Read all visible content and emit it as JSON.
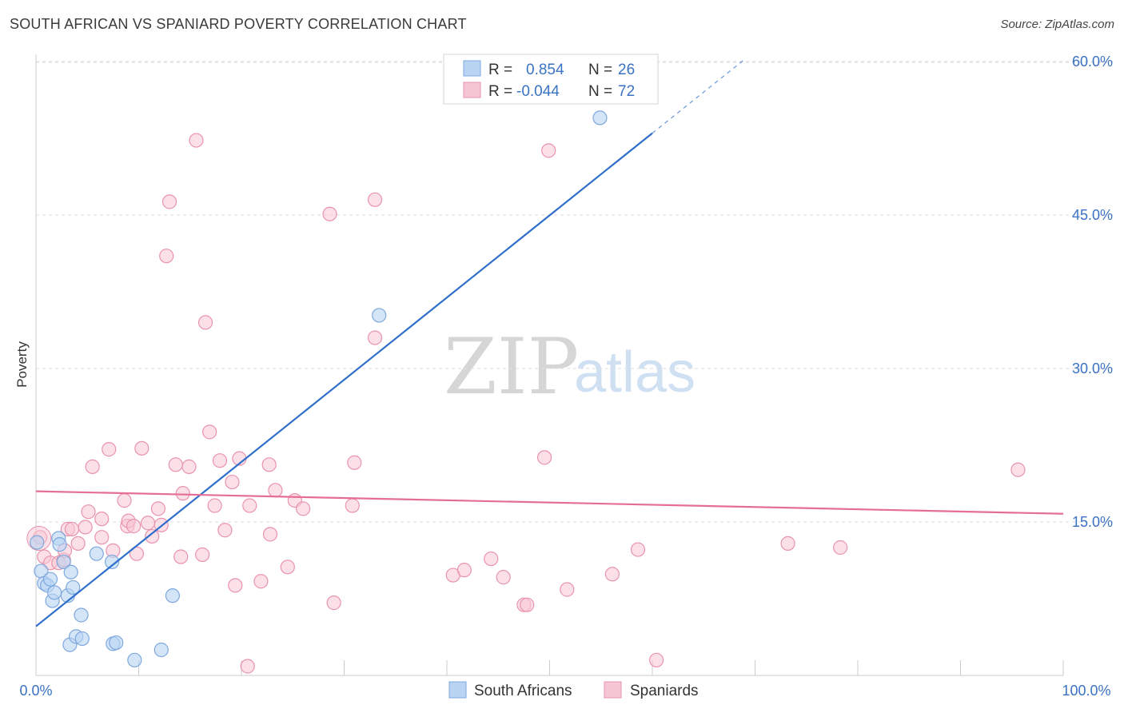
{
  "header": {
    "title": "SOUTH AFRICAN VS SPANIARD POVERTY CORRELATION CHART",
    "source": "Source: ZipAtlas.com"
  },
  "watermark": {
    "zip": "ZIP",
    "atlas": "atlas"
  },
  "colors": {
    "blue_fill": "#b9d3f3",
    "blue_stroke": "#7ea8dd",
    "blue_line": "#2f6fcc",
    "pink_fill": "#f7c6d4",
    "pink_stroke": "#e993ae",
    "pink_line": "#e56e95",
    "grid": "#dddddd",
    "tick_text": "#3a72c4"
  },
  "chart_data": {
    "type": "scatter",
    "title": "SOUTH AFRICAN VS SPANIARD POVERTY CORRELATION CHART",
    "xlabel": "",
    "ylabel": "Poverty",
    "xlim": [
      0,
      100
    ],
    "ylim": [
      0,
      62
    ],
    "x_tick_labels": [
      "0.0%",
      "100.0%"
    ],
    "y_ticks": [
      15,
      30,
      45,
      60
    ],
    "y_tick_labels": [
      "15.0%",
      "30.0%",
      "45.0%",
      "60.0%"
    ],
    "grid": true,
    "legend_position": "bottom-center",
    "stats": [
      {
        "r_label": "R =",
        "r_value": "0.854",
        "n_label": "N =",
        "n_value": "26"
      },
      {
        "r_label": "R =",
        "r_value": "-0.044",
        "n_label": "N =",
        "n_value": "72"
      }
    ],
    "series": [
      {
        "name": "South Africans",
        "color": "#b9d3f3",
        "trend": {
          "x0": 0,
          "y0": 4.8,
          "x1": 60,
          "y1": 53,
          "dashed_to_x": 69
        },
        "points": [
          [
            0.1,
            13
          ],
          [
            0.5,
            10.2
          ],
          [
            0.8,
            9
          ],
          [
            1.1,
            8.8
          ],
          [
            1.4,
            9.4
          ],
          [
            1.6,
            7.3
          ],
          [
            1.8,
            8.1
          ],
          [
            2.2,
            13.4
          ],
          [
            2.3,
            12.8
          ],
          [
            2.7,
            11.1
          ],
          [
            3.1,
            7.8
          ],
          [
            3.3,
            3
          ],
          [
            3.4,
            10.1
          ],
          [
            3.6,
            8.6
          ],
          [
            3.9,
            3.8
          ],
          [
            4.4,
            5.9
          ],
          [
            4.5,
            3.6
          ],
          [
            5.9,
            11.9
          ],
          [
            7.4,
            11.1
          ],
          [
            7.5,
            3.1
          ],
          [
            7.8,
            3.2
          ],
          [
            9.6,
            1.5
          ],
          [
            12.2,
            2.5
          ],
          [
            13.3,
            7.8
          ],
          [
            33.4,
            35.2
          ],
          [
            54.9,
            54.5
          ]
        ]
      },
      {
        "name": "Spaniards",
        "color": "#f7c6d4",
        "trend": {
          "x0": 0,
          "y0": 18,
          "x1": 100,
          "y1": 15.8
        },
        "points": [
          [
            0.4,
            13.5
          ],
          [
            0.8,
            11.6
          ],
          [
            1.4,
            11
          ],
          [
            2.2,
            11
          ],
          [
            2.7,
            11.3
          ],
          [
            2.8,
            12.2
          ],
          [
            3.1,
            14.3
          ],
          [
            3.5,
            14.3
          ],
          [
            4.1,
            12.9
          ],
          [
            4.8,
            14.5
          ],
          [
            5.1,
            16
          ],
          [
            5.5,
            20.4
          ],
          [
            6.4,
            13.5
          ],
          [
            6.4,
            15.3
          ],
          [
            7.1,
            22.1
          ],
          [
            7.5,
            12.2
          ],
          [
            8.6,
            17.1
          ],
          [
            8.9,
            14.6
          ],
          [
            9.0,
            15.1
          ],
          [
            9.5,
            14.6
          ],
          [
            9.8,
            11.9
          ],
          [
            10.3,
            22.2
          ],
          [
            10.9,
            14.9
          ],
          [
            11.3,
            13.6
          ],
          [
            11.9,
            16.3
          ],
          [
            12.2,
            14.7
          ],
          [
            12.7,
            41
          ],
          [
            13.0,
            46.3
          ],
          [
            13.6,
            20.6
          ],
          [
            14.1,
            11.6
          ],
          [
            14.3,
            17.8
          ],
          [
            14.9,
            20.4
          ],
          [
            15.6,
            52.3
          ],
          [
            16.2,
            11.8
          ],
          [
            16.5,
            34.5
          ],
          [
            16.9,
            23.8
          ],
          [
            17.4,
            16.6
          ],
          [
            17.9,
            21
          ],
          [
            18.4,
            14.2
          ],
          [
            19.1,
            18.9
          ],
          [
            19.4,
            8.8
          ],
          [
            19.8,
            21.2
          ],
          [
            20.6,
            0.9
          ],
          [
            20.8,
            16.6
          ],
          [
            21.9,
            9.2
          ],
          [
            22.7,
            20.6
          ],
          [
            22.8,
            13.8
          ],
          [
            23.3,
            18.1
          ],
          [
            24.5,
            10.6
          ],
          [
            25.2,
            17.1
          ],
          [
            26.0,
            16.3
          ],
          [
            28.6,
            45.1
          ],
          [
            29.0,
            7.1
          ],
          [
            30.8,
            16.6
          ],
          [
            31.0,
            20.8
          ],
          [
            33.0,
            46.5
          ],
          [
            33.0,
            33
          ],
          [
            40.6,
            9.8
          ],
          [
            41.7,
            10.3
          ],
          [
            44.3,
            11.4
          ],
          [
            45.5,
            9.6
          ],
          [
            47.5,
            6.9
          ],
          [
            47.8,
            6.9
          ],
          [
            49.5,
            21.3
          ],
          [
            49.9,
            51.3
          ],
          [
            51.7,
            8.4
          ],
          [
            56.1,
            9.9
          ],
          [
            58.6,
            12.3
          ],
          [
            60.4,
            1.5
          ],
          [
            73.2,
            12.9
          ],
          [
            78.3,
            12.5
          ],
          [
            95.6,
            20.1
          ]
        ]
      }
    ]
  }
}
